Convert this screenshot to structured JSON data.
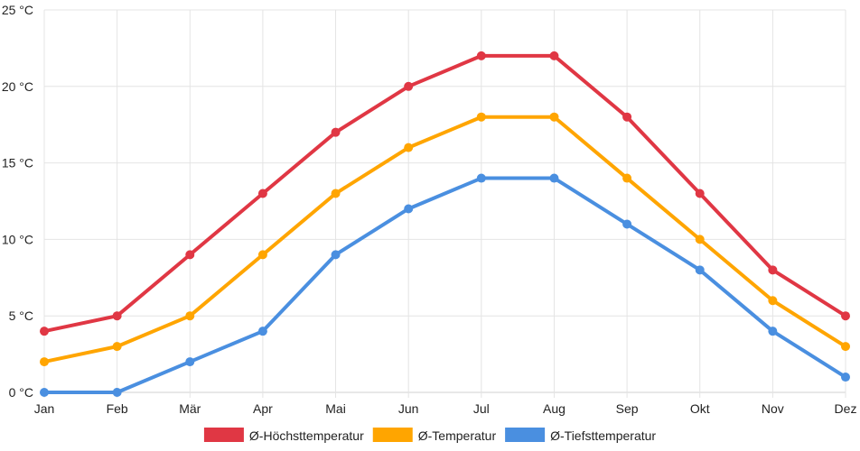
{
  "chart_data": {
    "type": "line",
    "categories": [
      "Jan",
      "Feb",
      "Mär",
      "Apr",
      "Mai",
      "Jun",
      "Jul",
      "Aug",
      "Sep",
      "Okt",
      "Nov",
      "Dez"
    ],
    "y_unit": "°C",
    "ylim": [
      0,
      25
    ],
    "y_ticks": [
      0,
      5,
      10,
      15,
      20,
      25
    ],
    "y_tick_labels": [
      "0 °C",
      "5 °C",
      "10 °C",
      "15 °C",
      "20 °C",
      "25 °C"
    ],
    "grid": true,
    "legend_position": "bottom",
    "series": [
      {
        "name": "Ø-Höchsttemperatur",
        "color": "#e03744",
        "values": [
          4,
          5,
          9,
          13,
          17,
          20,
          22,
          22,
          18,
          13,
          8,
          5
        ]
      },
      {
        "name": "Ø-Temperatur",
        "color": "#ffa500",
        "values": [
          2,
          3,
          5,
          9,
          13,
          16,
          18,
          18,
          14,
          10,
          6,
          3
        ]
      },
      {
        "name": "Ø-Tiefsttemperatur",
        "color": "#4a8fe0",
        "values": [
          0,
          0,
          2,
          4,
          9,
          12,
          14,
          14,
          11,
          8,
          4,
          1
        ]
      }
    ]
  }
}
